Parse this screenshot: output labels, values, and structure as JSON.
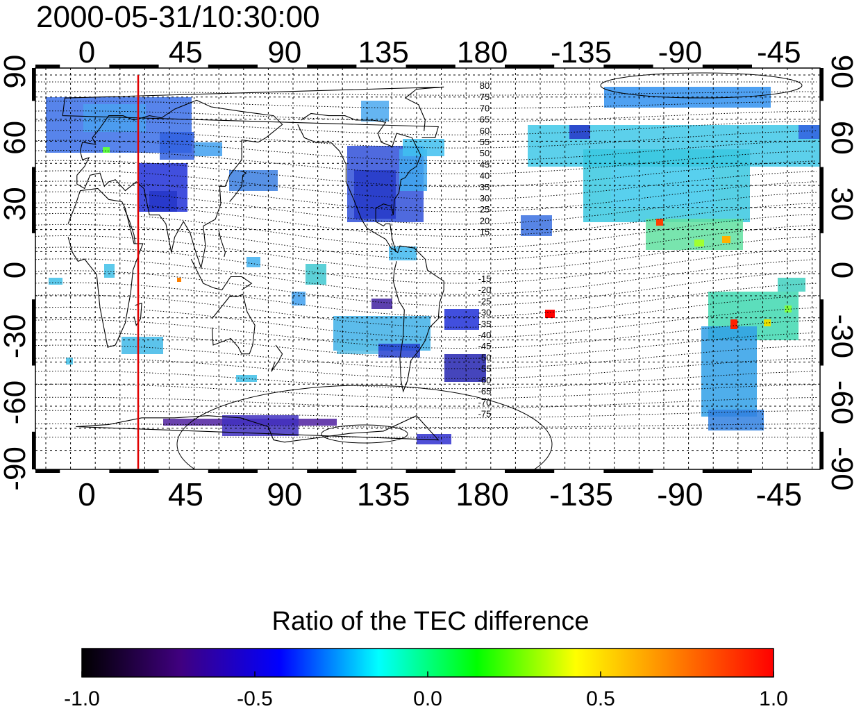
{
  "timestamp": "2000-05-31/10:30:00",
  "map": {
    "lon_ticks_top": [
      "0",
      "45",
      "90",
      "135",
      "180",
      "-135",
      "-90",
      "-45"
    ],
    "lon_ticks_bottom": [
      "0",
      "45",
      "90",
      "135",
      "180",
      "-135",
      "-90",
      "-45"
    ],
    "lat_ticks_left": [
      "90",
      "60",
      "30",
      "0",
      "-30",
      "-60",
      "-90"
    ],
    "lat_ticks_right": [
      "90",
      "60",
      "30",
      "0",
      "-30",
      "-60",
      "-90"
    ],
    "contour_labels_north": [
      "80",
      "75",
      "70",
      "65",
      "60",
      "55",
      "50",
      "45",
      "40",
      "35",
      "30",
      "25",
      "20",
      "15"
    ],
    "contour_labels_south": [
      "-15",
      "-20",
      "-25",
      "-30",
      "-35",
      "-40",
      "-45",
      "-50",
      "-55",
      "-60",
      "-65",
      "-70",
      "-75"
    ],
    "marker_line_color": "#e00000"
  },
  "colorbar": {
    "title": "Ratio of the TEC difference",
    "tick_labels": [
      "-1.0",
      "-0.5",
      "0.0",
      "0.5",
      "1.0"
    ],
    "colors": [
      "#000000",
      "#400080",
      "#0000ff",
      "#00ffff",
      "#00ff00",
      "#ffff00",
      "#ff8000",
      "#ff0000"
    ]
  }
}
